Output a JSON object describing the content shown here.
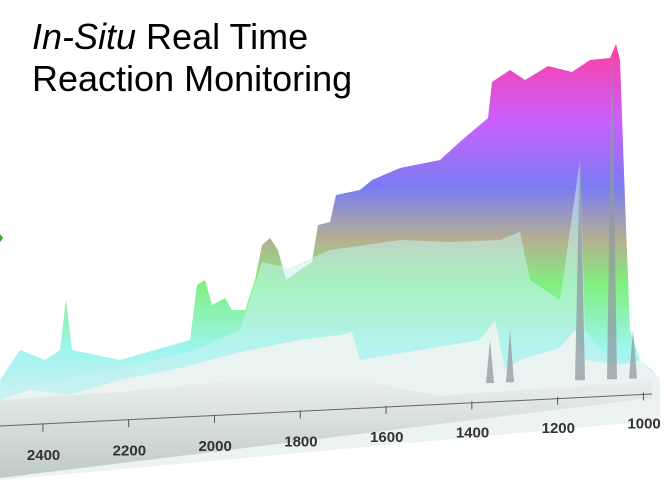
{
  "title": {
    "italic": "In-Situ",
    "rest_line1": " Real Time",
    "line2": "Reaction Monitoring"
  },
  "chart_data": {
    "type": "area",
    "subtype": "3d-waterfall",
    "x_ticks": [
      "2400",
      "2200",
      "2000",
      "1800",
      "1600",
      "1400",
      "1200",
      "1000"
    ],
    "x_tick_values": [
      2400,
      2200,
      2000,
      1800,
      1600,
      1400,
      1200,
      1000
    ],
    "xlim": [
      2500,
      980
    ],
    "colors": [
      "#f4f7f4",
      "#a8f2f0",
      "#7ff07f",
      "#7a7cf2",
      "#f060c0"
    ]
  }
}
